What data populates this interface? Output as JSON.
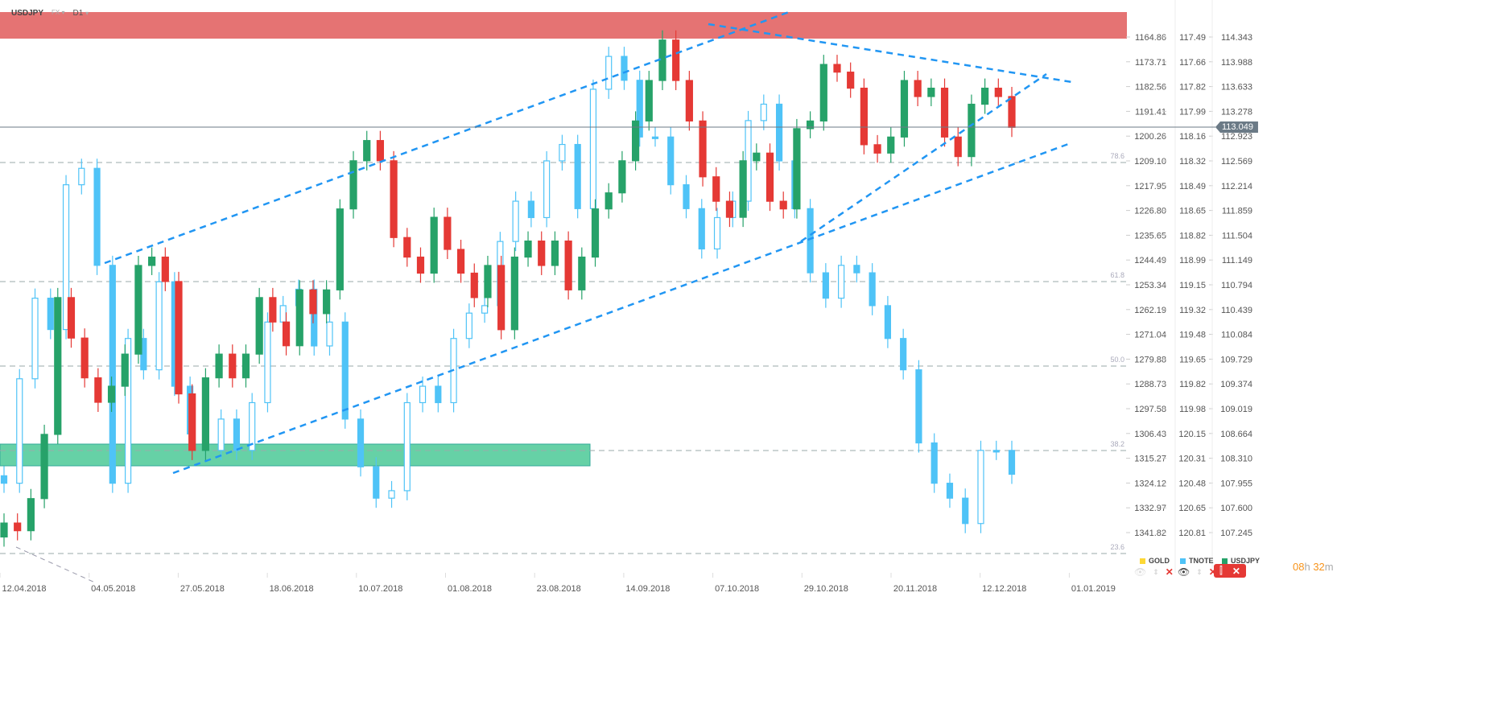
{
  "header": {
    "symbol": "USDJPY",
    "market": "FX",
    "interval": "D1"
  },
  "timer": {
    "hours": "08",
    "h": "h",
    "minutes": "32",
    "m": "m"
  },
  "legend": [
    {
      "name": "GOLD",
      "color": "#fdd835"
    },
    {
      "name": "TNOTE",
      "color": "#4fc3f7"
    },
    {
      "name": "USDJPY",
      "color": "#26a269"
    }
  ],
  "current_price": "113.049",
  "colors": {
    "up": "#26a269",
    "down": "#e53935",
    "tnote": "#4fc3f7",
    "trend": "#2196f3",
    "resistance_zone": "#e57373",
    "support_zone": "#66d1a6"
  },
  "chart_data": {
    "type": "candlestick",
    "x_ticks": [
      "12.04.2018",
      "04.05.2018",
      "27.05.2018",
      "18.06.2018",
      "10.07.2018",
      "01.08.2018",
      "23.08.2018",
      "14.09.2018",
      "07.10.2018",
      "29.10.2018",
      "20.11.2018",
      "12.12.2018",
      "01.01.2019"
    ],
    "axes": {
      "GOLD": [
        "1164.86",
        "1173.71",
        "1182.56",
        "1191.41",
        "1200.26",
        "1209.10",
        "1217.95",
        "1226.80",
        "1235.65",
        "1244.49",
        "1253.34",
        "1262.19",
        "1271.04",
        "1279.88",
        "1288.73",
        "1297.58",
        "1306.43",
        "1315.27",
        "1324.12",
        "1332.97",
        "1341.82"
      ],
      "TNOTE": [
        "117.49",
        "117.66",
        "117.82",
        "117.99",
        "118.16",
        "118.32",
        "118.49",
        "118.65",
        "118.82",
        "118.99",
        "119.15",
        "119.32",
        "119.48",
        "119.65",
        "119.82",
        "119.98",
        "120.15",
        "120.31",
        "120.48",
        "120.65",
        "120.81"
      ],
      "USDJPY": [
        "114.343",
        "113.988",
        "113.633",
        "113.278",
        "112.923",
        "112.569",
        "112.214",
        "111.859",
        "111.504",
        "111.149",
        "110.794",
        "110.439",
        "110.084",
        "109.729",
        "109.374",
        "109.019",
        "108.664",
        "108.310",
        "107.955",
        "107.600",
        "107.245"
      ]
    },
    "fib_levels": [
      "78.6",
      "61.8",
      "50.0",
      "38.2",
      "23.6"
    ],
    "series": [
      {
        "name": "USDJPY",
        "closes": [
          107.38,
          107.27,
          107.73,
          108.65,
          110.61,
          110.03,
          109.46,
          109.11,
          109.34,
          109.8,
          111.07,
          111.19,
          110.84,
          109.23,
          108.42,
          109.46,
          109.8,
          109.46,
          109.8,
          110.61,
          110.26,
          109.92,
          110.72,
          110.38,
          110.72,
          111.88,
          112.57,
          112.86,
          112.57,
          111.47,
          111.19,
          110.96,
          111.76,
          111.3,
          110.96,
          110.61,
          111.07,
          110.15,
          111.19,
          111.42,
          111.07,
          111.42,
          110.72,
          111.19,
          111.88,
          112.11,
          112.57,
          113.14,
          113.72,
          114.3,
          113.72,
          113.14,
          112.34,
          111.99,
          111.76,
          112.57,
          112.68,
          111.99,
          111.88,
          113.03,
          113.14,
          113.95,
          113.84,
          113.61,
          112.8,
          112.68,
          112.91,
          113.72,
          113.49,
          113.61,
          112.91,
          112.63,
          113.38,
          113.61,
          113.49,
          113.049
        ]
      },
      {
        "name": "TNOTE",
        "closes": [
          120.48,
          119.78,
          119.24,
          119.45,
          118.48,
          118.37,
          119.02,
          120.48,
          119.51,
          119.72,
          119.13,
          119.83,
          120.15,
          120.26,
          120.05,
          120.26,
          119.94,
          119.4,
          119.29,
          119.18,
          119.56,
          119.4,
          120.05,
          120.37,
          120.58,
          120.53,
          119.94,
          119.83,
          119.94,
          119.51,
          119.34,
          119.29,
          118.86,
          118.59,
          118.7,
          118.32,
          118.21,
          118.64,
          117.84,
          117.62,
          117.78,
          118.16,
          118.16,
          118.48,
          118.64,
          118.91,
          118.7,
          118.59,
          118.05,
          117.94,
          118.32,
          118.64,
          119.07,
          119.24,
          119.02,
          119.07,
          119.29,
          119.51,
          119.72,
          120.21,
          120.48,
          120.58,
          120.75,
          120.26,
          120.26,
          120.42
        ]
      }
    ]
  }
}
